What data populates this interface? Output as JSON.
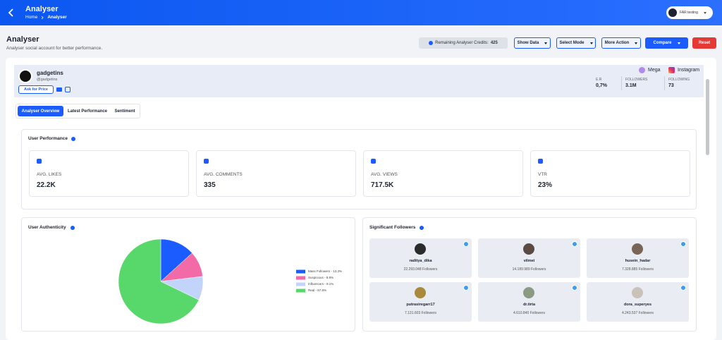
{
  "header": {
    "title": "Analyser",
    "breadcrumb": [
      "Home",
      "Analyser"
    ],
    "user": "FAR testing"
  },
  "page": {
    "title": "Analyser",
    "subtitle": "Analyser social account for better performance."
  },
  "toolbar": {
    "credits_label": "Remaining Analyser Credits:",
    "credits": 425,
    "dropdowns": [
      "Show Data",
      "Select Mode",
      "More Action"
    ],
    "compare": "Compare",
    "reset": "Reset"
  },
  "profile": {
    "name": "gadgetins",
    "handle": "@gadgetins",
    "ask": "Ask for Price",
    "tier": "Mega",
    "platform": "Instagram",
    "stats": [
      {
        "label": "E.R",
        "value": "0,7%"
      },
      {
        "label": "FOLLOWERS",
        "value": "3.1M"
      },
      {
        "label": "FOLLOWING",
        "value": "73"
      }
    ]
  },
  "tabs": [
    "Analyser Overview",
    "Latest Performance",
    "Sentiment"
  ],
  "performance": {
    "title": "User Performance",
    "cards": [
      {
        "label": "AVG. LIKES",
        "value": "22.2K"
      },
      {
        "label": "AVG. COMMENTS",
        "value": "335"
      },
      {
        "label": "AVG. VIEWS",
        "value": "717.5K"
      },
      {
        "label": "VTR",
        "value": "23%"
      }
    ]
  },
  "chart_data": {
    "type": "pie",
    "title": "User Authenticity",
    "categories": [
      "Mass Followers - 13.3%",
      "Suspicious - 9.8%",
      "Influencers - 9.1%",
      "Real - 67.8%"
    ],
    "values": [
      13.3,
      9.8,
      9.1,
      67.8
    ],
    "colors": [
      "#1a5cff",
      "#f26aa6",
      "#c3d4fb",
      "#58d86b"
    ]
  },
  "followers": {
    "title": "Significant Followers",
    "items": [
      {
        "name": "raditya_dika",
        "count": "22.293.048 Followers"
      },
      {
        "name": "vilmei",
        "count": "14.189.989 Followers"
      },
      {
        "name": "husein_hadar",
        "count": "7.328.885 Followers"
      },
      {
        "name": "putrasiregarr17",
        "count": "7.131.603 Followers"
      },
      {
        "name": "dr.tirta",
        "count": "4.610.840 Followers"
      },
      {
        "name": "dora_superyes",
        "count": "4.243.537 Followers"
      }
    ]
  }
}
